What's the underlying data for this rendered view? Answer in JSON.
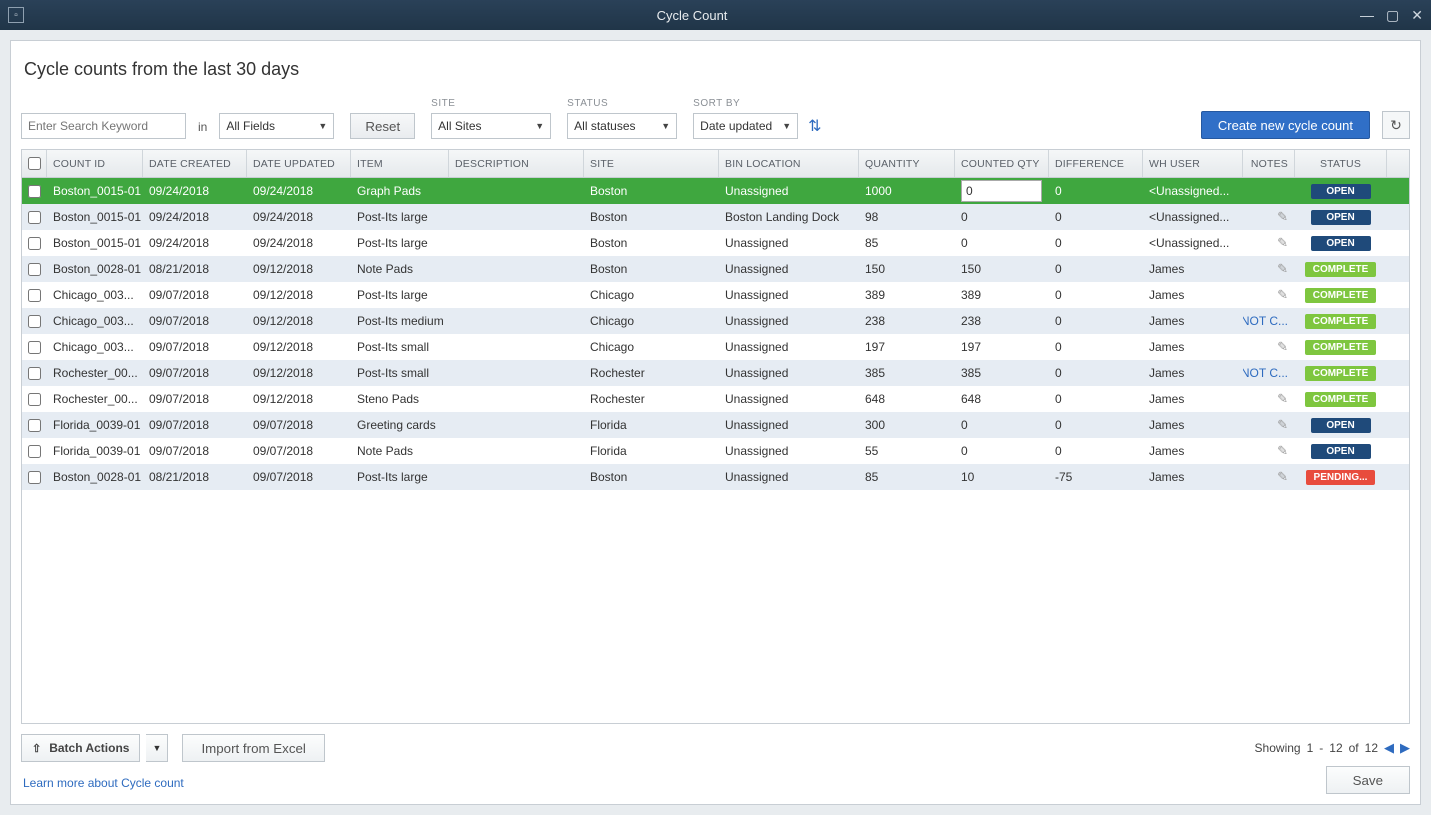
{
  "window": {
    "title": "Cycle Count"
  },
  "page_heading": "Cycle counts from the last 30 days",
  "toolbar": {
    "search_placeholder": "Enter Search Keyword",
    "in_label": "in",
    "fields_select": "All Fields",
    "reset_label": "Reset",
    "site_label": "SITE",
    "site_select": "All Sites",
    "status_label": "STATUS",
    "status_select": "All statuses",
    "sortby_label": "SORT BY",
    "sortby_select": "Date updated",
    "create_button": "Create new cycle count"
  },
  "columns": {
    "count_id": "COUNT ID",
    "date_created": "DATE CREATED",
    "date_updated": "DATE UPDATED",
    "item": "ITEM",
    "description": "DESCRIPTION",
    "site": "SITE",
    "bin": "BIN LOCATION",
    "qty": "QUANTITY",
    "cqty": "COUNTED QTY",
    "diff": "DIFFERENCE",
    "user": "WH USER",
    "notes": "NOTES",
    "status": "STATUS"
  },
  "rows": [
    {
      "selected": true,
      "id": "Boston_0015-01",
      "created": "09/24/2018",
      "updated": "09/24/2018",
      "item": "Graph Pads",
      "desc": "",
      "site": "Boston",
      "bin": "Unassigned",
      "qty": "1000",
      "cqty": "0",
      "cqty_edit": true,
      "diff": "0",
      "user": "<Unassigned...",
      "notes": "",
      "status": "OPEN"
    },
    {
      "id": "Boston_0015-01",
      "created": "09/24/2018",
      "updated": "09/24/2018",
      "item": "Post-Its large",
      "desc": "",
      "site": "Boston",
      "bin": "Boston Landing Dock",
      "qty": "98",
      "cqty": "0",
      "diff": "0",
      "user": "<Unassigned...",
      "notes": "pencil",
      "status": "OPEN"
    },
    {
      "id": "Boston_0015-01",
      "created": "09/24/2018",
      "updated": "09/24/2018",
      "item": "Post-Its large",
      "desc": "",
      "site": "Boston",
      "bin": "Unassigned",
      "qty": "85",
      "cqty": "0",
      "diff": "0",
      "user": "<Unassigned...",
      "notes": "pencil",
      "status": "OPEN"
    },
    {
      "id": "Boston_0028-01",
      "created": "08/21/2018",
      "updated": "09/12/2018",
      "item": "Note Pads",
      "desc": "",
      "site": "Boston",
      "bin": "Unassigned",
      "qty": "150",
      "cqty": "150",
      "diff": "0",
      "user": "James",
      "notes": "pencil",
      "status": "COMPLETE"
    },
    {
      "id": "Chicago_003...",
      "created": "09/07/2018",
      "updated": "09/12/2018",
      "item": "Post-Its large",
      "desc": "",
      "site": "Chicago",
      "bin": "Unassigned",
      "qty": "389",
      "cqty": "389",
      "diff": "0",
      "user": "James",
      "notes": "pencil",
      "status": "COMPLETE"
    },
    {
      "id": "Chicago_003...",
      "created": "09/07/2018",
      "updated": "09/12/2018",
      "item": "Post-Its medium",
      "desc": "",
      "site": "Chicago",
      "bin": "Unassigned",
      "qty": "238",
      "cqty": "238",
      "diff": "0",
      "user": "James",
      "notes": "NOT C...",
      "status": "COMPLETE"
    },
    {
      "id": "Chicago_003...",
      "created": "09/07/2018",
      "updated": "09/12/2018",
      "item": "Post-Its small",
      "desc": "",
      "site": "Chicago",
      "bin": "Unassigned",
      "qty": "197",
      "cqty": "197",
      "diff": "0",
      "user": "James",
      "notes": "pencil",
      "status": "COMPLETE"
    },
    {
      "id": "Rochester_00...",
      "created": "09/07/2018",
      "updated": "09/12/2018",
      "item": "Post-Its small",
      "desc": "",
      "site": "Rochester",
      "bin": "Unassigned",
      "qty": "385",
      "cqty": "385",
      "diff": "0",
      "user": "James",
      "notes": "NOT C...",
      "status": "COMPLETE"
    },
    {
      "id": "Rochester_00...",
      "created": "09/07/2018",
      "updated": "09/12/2018",
      "item": "Steno Pads",
      "desc": "",
      "site": "Rochester",
      "bin": "Unassigned",
      "qty": "648",
      "cqty": "648",
      "diff": "0",
      "user": "James",
      "notes": "pencil",
      "status": "COMPLETE"
    },
    {
      "id": "Florida_0039-01",
      "created": "09/07/2018",
      "updated": "09/07/2018",
      "item": "Greeting cards",
      "desc": "",
      "site": "Florida",
      "bin": "Unassigned",
      "qty": "300",
      "cqty": "0",
      "diff": "0",
      "user": "James",
      "notes": "pencil",
      "status": "OPEN"
    },
    {
      "id": "Florida_0039-01",
      "created": "09/07/2018",
      "updated": "09/07/2018",
      "item": "Note Pads",
      "desc": "",
      "site": "Florida",
      "bin": "Unassigned",
      "qty": "55",
      "cqty": "0",
      "diff": "0",
      "user": "James",
      "notes": "pencil",
      "status": "OPEN"
    },
    {
      "id": "Boston_0028-01",
      "created": "08/21/2018",
      "updated": "09/07/2018",
      "item": "Post-Its large",
      "desc": "",
      "site": "Boston",
      "bin": "Unassigned",
      "qty": "85",
      "cqty": "10",
      "diff": "-75",
      "user": "James",
      "notes": "pencil",
      "status": "PENDING..."
    }
  ],
  "footer": {
    "batch_label": "Batch Actions",
    "import_label": "Import from Excel",
    "showing_label": "Showing",
    "from": "1",
    "dash": "-",
    "to": "12",
    "of_label": "of",
    "total": "12",
    "learn_more": "Learn more about Cycle count",
    "save_label": "Save"
  },
  "styles": {
    "primary_color": "#306fc7",
    "selected_row": "#3fa73f",
    "alt_row": "#e6ecf3",
    "status_colors": {
      "OPEN": "#1f4a7a",
      "COMPLETE": "#7ec63f",
      "PENDING": "#e84c3d"
    }
  }
}
